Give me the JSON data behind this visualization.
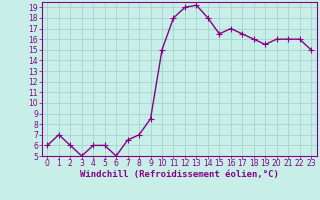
{
  "x": [
    0,
    1,
    2,
    3,
    4,
    5,
    6,
    7,
    8,
    9,
    10,
    11,
    12,
    13,
    14,
    15,
    16,
    17,
    18,
    19,
    20,
    21,
    22,
    23
  ],
  "y": [
    6,
    7,
    6,
    5,
    6,
    6,
    5,
    6.5,
    7,
    8.5,
    15,
    18,
    19,
    19.2,
    18,
    16.5,
    17,
    16.5,
    16,
    15.5,
    16,
    16,
    16,
    15
  ],
  "line_color": "#880088",
  "marker_color": "#880088",
  "bg_color": "#C8EEE8",
  "grid_color": "#A0CCCC",
  "xlabel": "Windchill (Refroidissement éolien,°C)",
  "ylim": [
    5,
    19.5
  ],
  "xlim": [
    -0.5,
    23.5
  ],
  "yticks": [
    5,
    6,
    7,
    8,
    9,
    10,
    11,
    12,
    13,
    14,
    15,
    16,
    17,
    18,
    19
  ],
  "xticks": [
    0,
    1,
    2,
    3,
    4,
    5,
    6,
    7,
    8,
    9,
    10,
    11,
    12,
    13,
    14,
    15,
    16,
    17,
    18,
    19,
    20,
    21,
    22,
    23
  ],
  "tick_fontsize": 5.5,
  "xlabel_fontsize": 6.5,
  "marker_size": 2.0,
  "line_width": 1.0,
  "spine_color": "#880088"
}
